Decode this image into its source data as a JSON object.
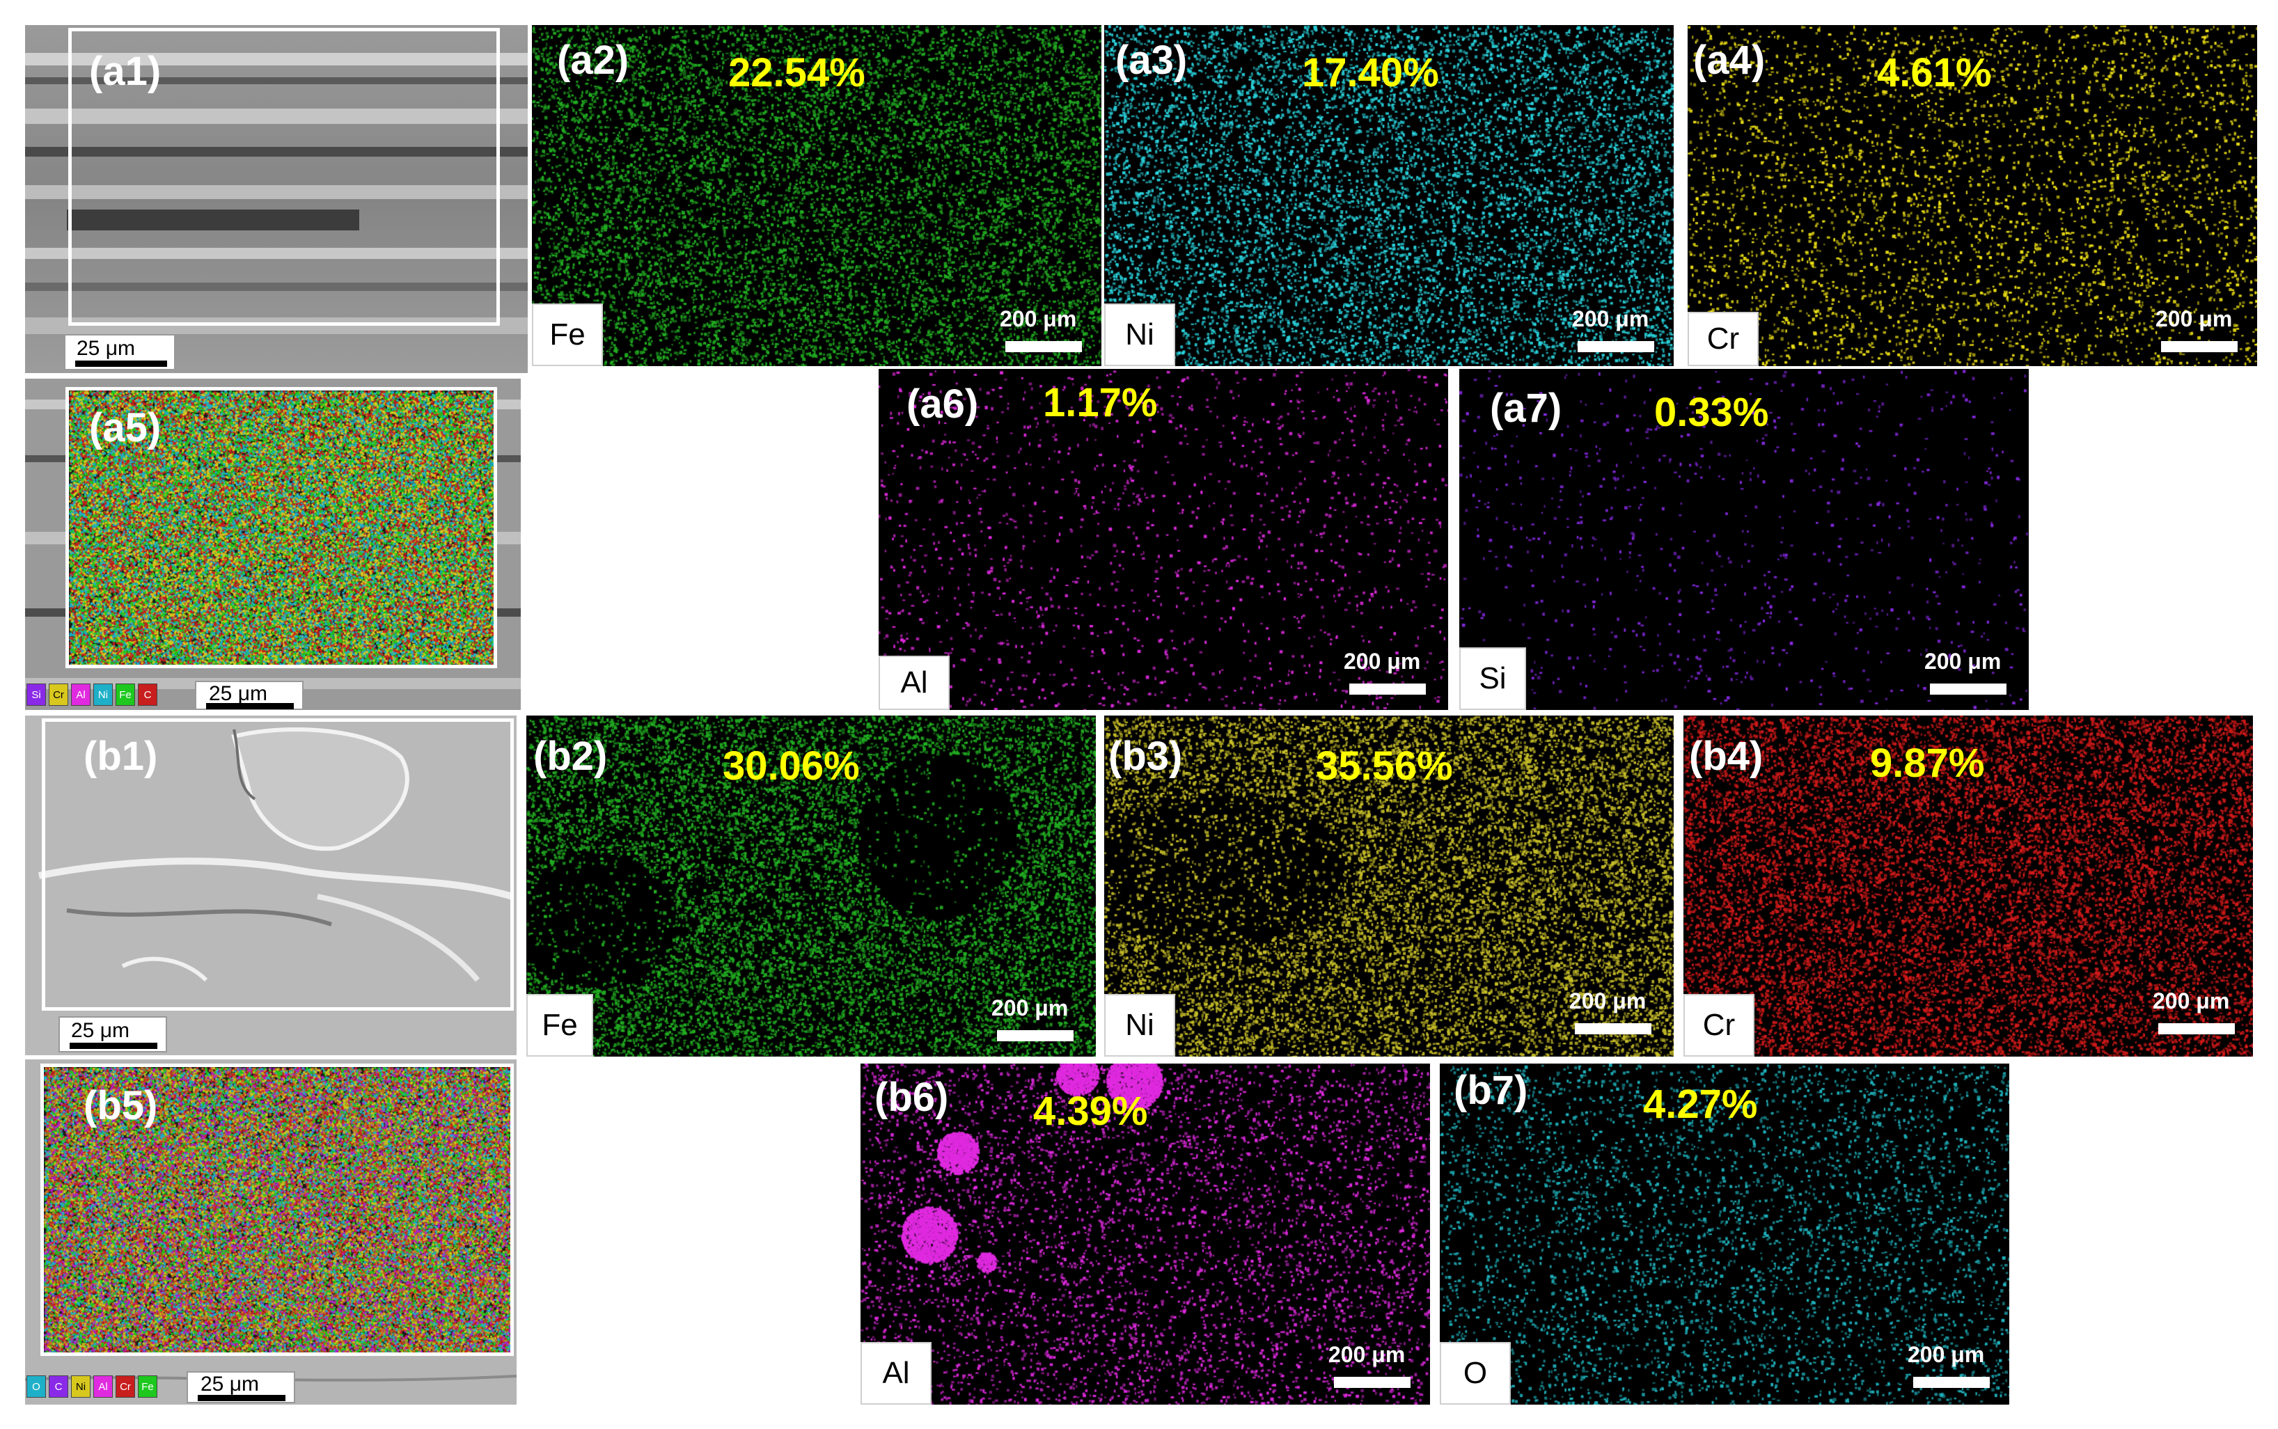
{
  "colors": {
    "fe_green": "#22b022",
    "ni_cyan": "#2ad6e0",
    "cr_yellow": "#f2e416",
    "al_magenta": "#e02ae0",
    "si_purple": "#8a2ae8",
    "b_ni_yellow": "#c9c02a",
    "b_cr_red": "#d41a1a",
    "o_cyan": "#1fb5c0",
    "percent_text": "#ffff00"
  },
  "panels": {
    "a1": {
      "label": "(a1)",
      "scale": "25 μm"
    },
    "a2": {
      "label": "(a2)",
      "percent": "22.54%",
      "element": "Fe",
      "scale": "200 μm"
    },
    "a3": {
      "label": "(a3)",
      "percent": "17.40%",
      "element": "Ni",
      "scale": "200 μm"
    },
    "a4": {
      "label": "(a4)",
      "percent": "4.61%",
      "element": "Cr",
      "scale": "200 μm"
    },
    "a5": {
      "label": "(a5)",
      "scale": "25 μm",
      "legend": [
        "Si",
        "Cr",
        "Al",
        "Ni",
        "Fe",
        "C"
      ]
    },
    "a6": {
      "label": "(a6)",
      "percent": "1.17%",
      "element": "Al",
      "scale": "200 μm"
    },
    "a7": {
      "label": "(a7)",
      "percent": "0.33%",
      "element": "Si",
      "scale": "200 μm"
    },
    "b1": {
      "label": "(b1)",
      "scale": "25 μm"
    },
    "b2": {
      "label": "(b2)",
      "percent": "30.06%",
      "element": "Fe",
      "scale": "200 μm"
    },
    "b3": {
      "label": "(b3)",
      "percent": "35.56%",
      "element": "Ni",
      "scale": "200 μm"
    },
    "b4": {
      "label": "(b4)",
      "percent": "9.87%",
      "element": "Cr",
      "scale": "200 μm"
    },
    "b5": {
      "label": "(b5)",
      "scale": "25 μm",
      "legend": [
        "O",
        "C",
        "Ni",
        "Al",
        "Cr",
        "Fe"
      ]
    },
    "b6": {
      "label": "(b6)",
      "percent": "4.39%",
      "element": "Al",
      "scale": "200 μm"
    },
    "b7": {
      "label": "(b7)",
      "percent": "4.27%",
      "element": "O",
      "scale": "200 μm"
    }
  }
}
